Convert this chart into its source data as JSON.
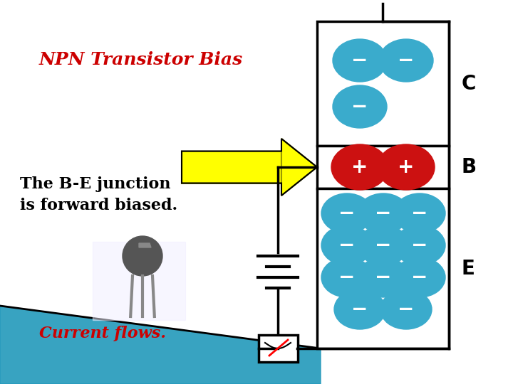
{
  "title": "NPN Transistor Bias",
  "title_color": "#cc0000",
  "text1": "The B-E junction",
  "text2": "is forward biased.",
  "text3": "Current flows.",
  "text3_color": "#cc0000",
  "label_C": "C",
  "label_B": "B",
  "label_E": "E",
  "bg_color": "#ffffff",
  "teal_color": "#3aabcc",
  "red_color": "#cc1111",
  "stripe_color": "#2299bb",
  "lw": 2.5
}
